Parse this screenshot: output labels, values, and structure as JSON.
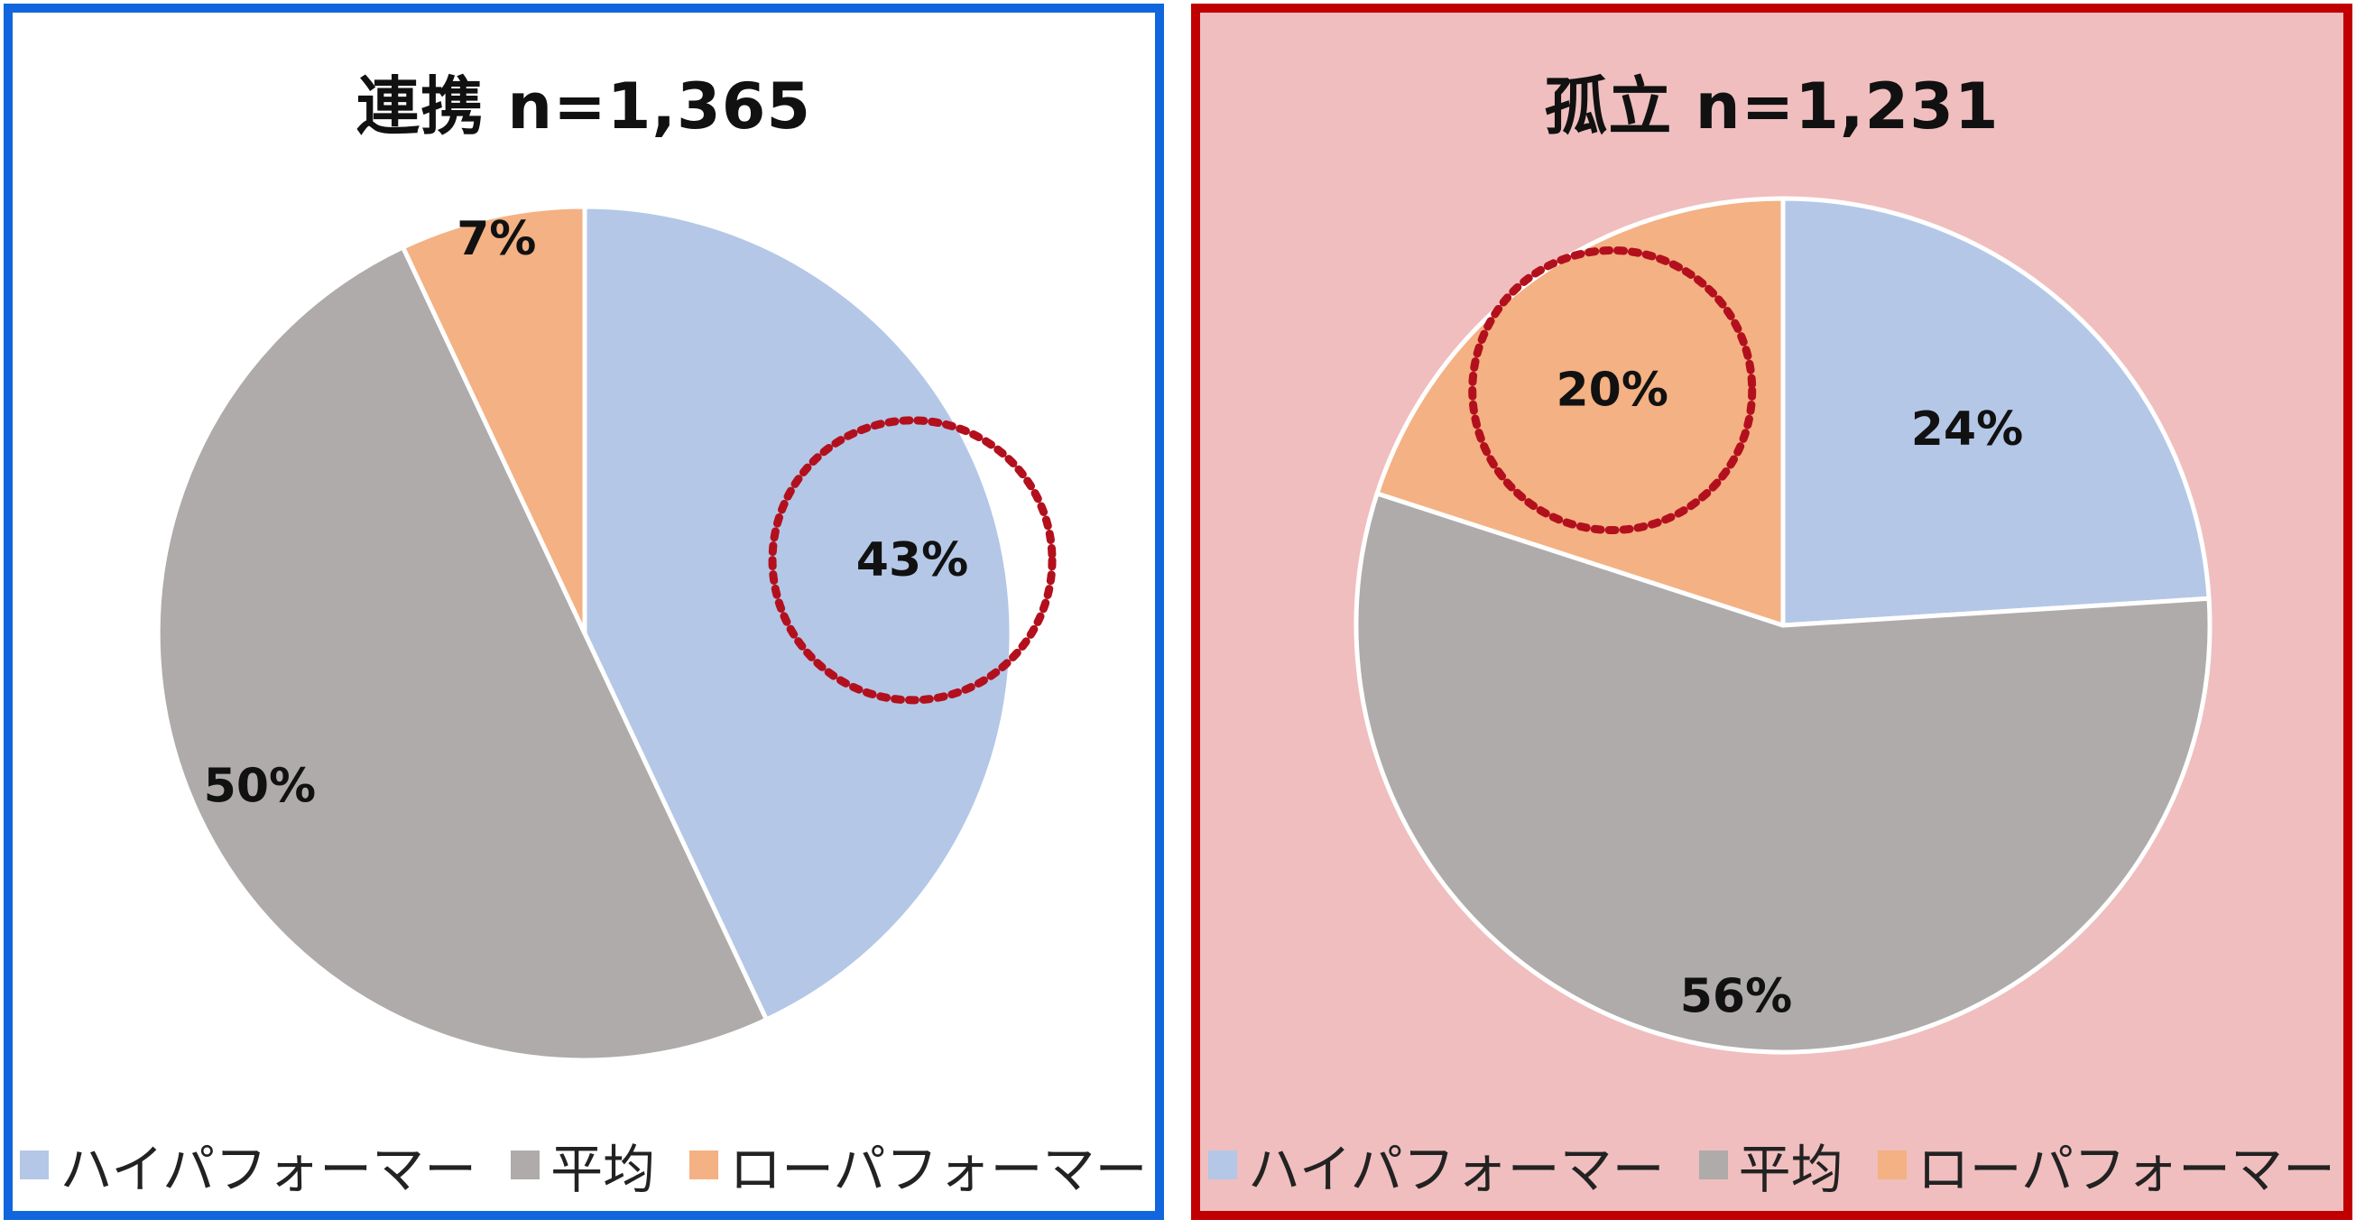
{
  "colors": {
    "high": "#b4c7e7",
    "avg": "#afabab",
    "low": "#f4b183",
    "left_border": "#1166dd",
    "right_border": "#c00000",
    "right_background": "#f0bebe",
    "left_background": "#ffffff",
    "highlight_circle": "#b3101e"
  },
  "legend": {
    "high": "ハイパフォーマー",
    "avg": "平均",
    "low": "ローパフォーマー"
  },
  "panels": {
    "left": {
      "title": "連携 n=1,365",
      "highlight": "high",
      "labels": {
        "high": "43%",
        "avg": "50%",
        "low": "7%"
      }
    },
    "right": {
      "title": "孤立 n=1,231",
      "highlight": "low",
      "labels": {
        "high": "24%",
        "avg": "56%",
        "low": "20%"
      }
    }
  },
  "chart_data": [
    {
      "type": "pie",
      "title": "連携 n=1,365",
      "categories": [
        "ハイパフォーマー",
        "平均",
        "ローパフォーマー"
      ],
      "values": [
        43,
        50,
        7
      ],
      "unit": "%",
      "start_angle": "12 o'clock, clockwise",
      "legend_position": "bottom",
      "highlighted_category": "ハイパフォーマー"
    },
    {
      "type": "pie",
      "title": "孤立 n=1,231",
      "categories": [
        "ハイパフォーマー",
        "平均",
        "ローパフォーマー"
      ],
      "values": [
        24,
        56,
        20
      ],
      "unit": "%",
      "start_angle": "12 o'clock, clockwise",
      "legend_position": "bottom",
      "highlighted_category": "ローパフォーマー"
    }
  ]
}
